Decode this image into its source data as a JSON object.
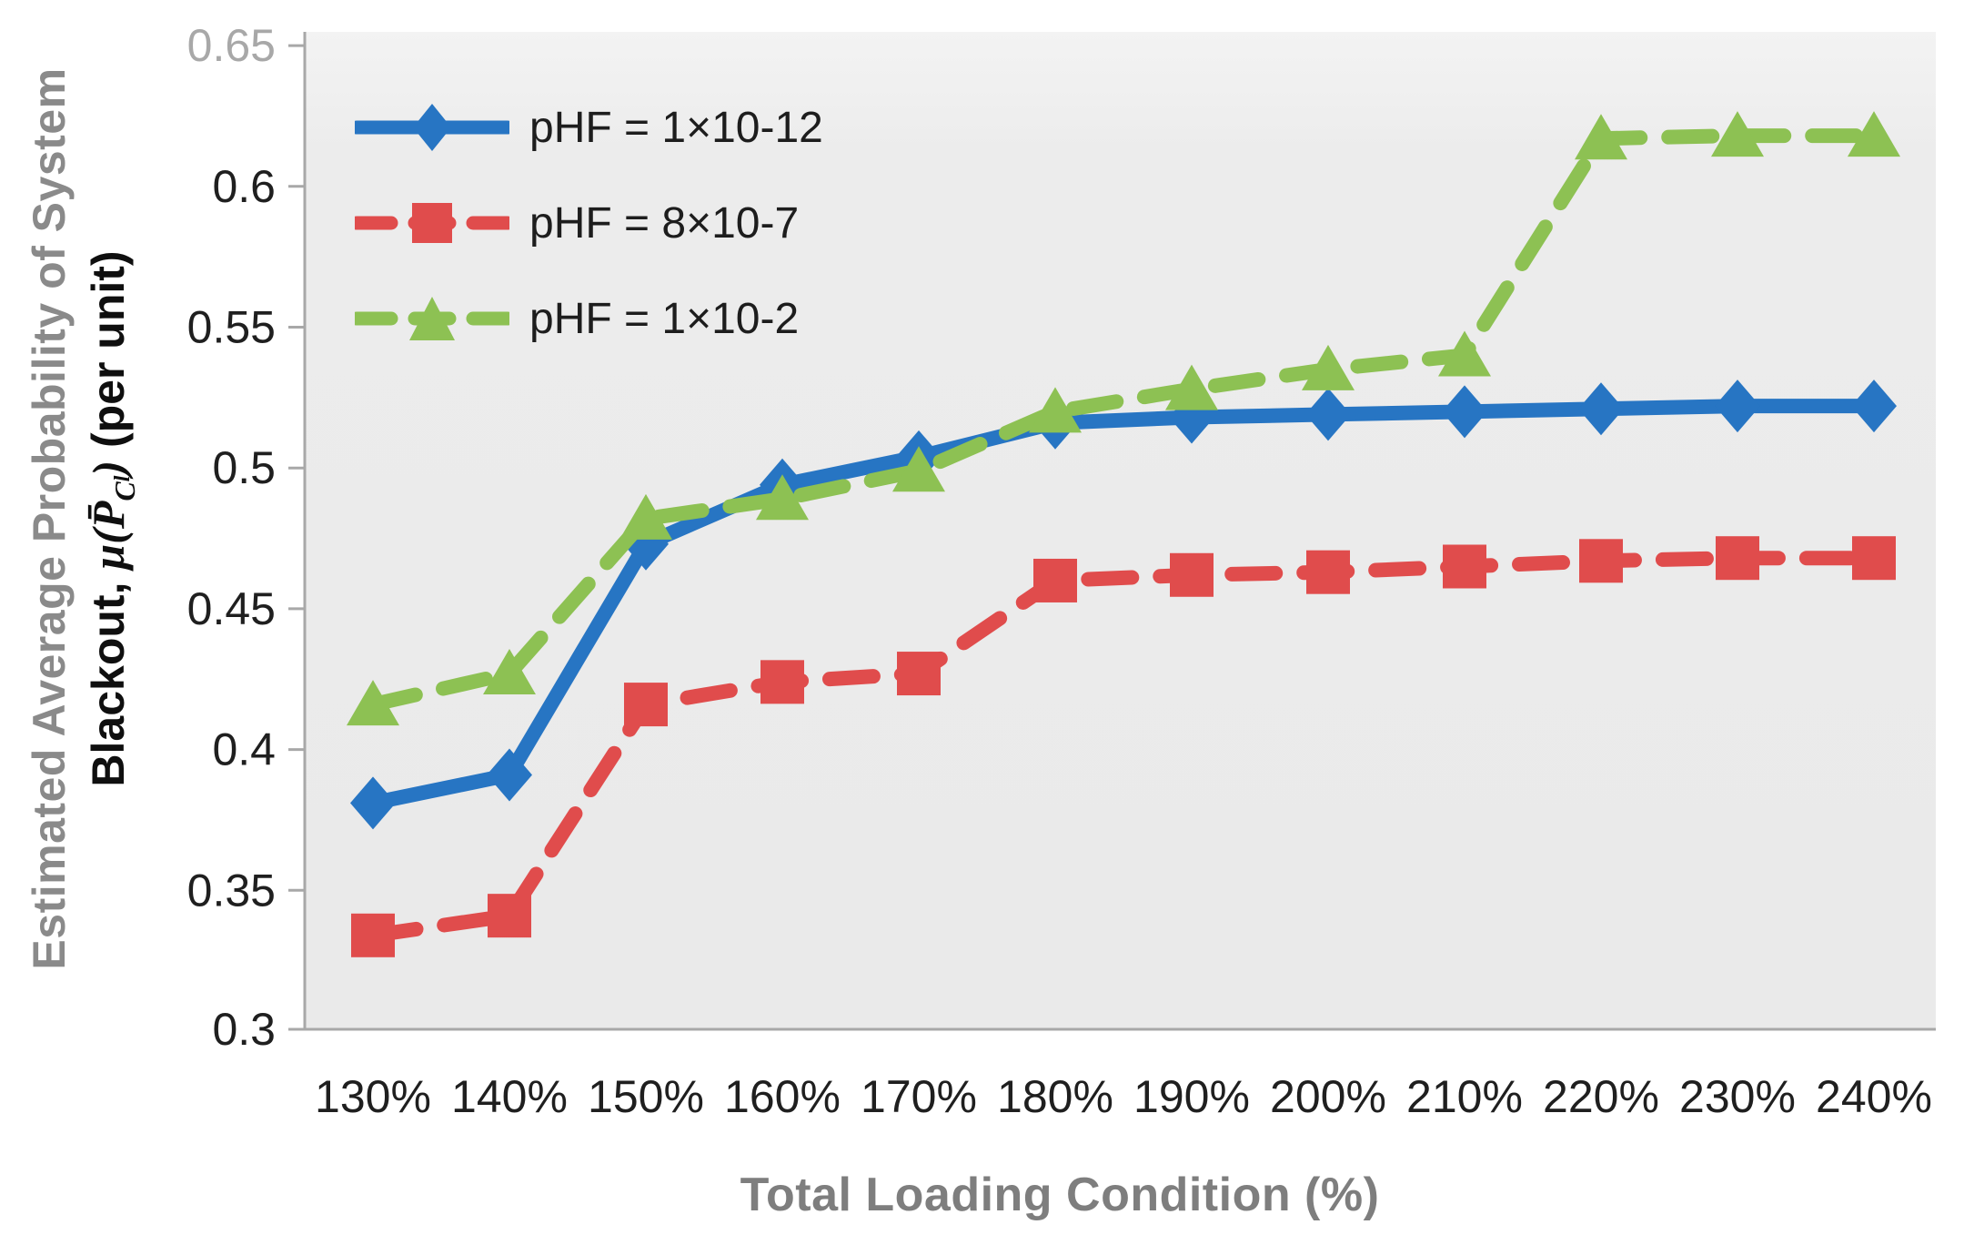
{
  "chart_data": {
    "type": "line",
    "xlabel": "Total Loading Condition (%)",
    "ylabel": {
      "line1": "Estimated Average Probability of System",
      "line2_prefix": "Blackout, ",
      "math_mu": "μ(",
      "math_p": "P̄",
      "math_sub_c": "C",
      "math_sub_l": "l",
      "math_close": ")",
      "line2_suffix": " (per unit)"
    },
    "categories": [
      "130%",
      "140%",
      "150%",
      "160%",
      "170%",
      "180%",
      "190%",
      "200%",
      "210%",
      "220%",
      "230%",
      "240%"
    ],
    "y_ticks": [
      {
        "label": "0.65",
        "value": 0.65
      },
      {
        "label": "0.6",
        "value": 0.6
      },
      {
        "label": "0.55",
        "value": 0.55
      },
      {
        "label": "0.5",
        "value": 0.5
      },
      {
        "label": "0.45",
        "value": 0.45
      },
      {
        "label": "0.4",
        "value": 0.4
      },
      {
        "label": "0.35",
        "value": 0.35
      },
      {
        "label": "0.3",
        "value": 0.3
      }
    ],
    "muted_y_tick": "0.65",
    "ylim": [
      0.3,
      0.65
    ],
    "grid": false,
    "legend_position": "top-left",
    "panel_bg": "#ececec",
    "axis_color": "#a8a8a8",
    "series": [
      {
        "name": "pHF = 1×10-12",
        "color": "#2775c3",
        "dash": "solid",
        "marker": "diamond",
        "values": [
          0.381,
          0.391,
          0.473,
          0.494,
          0.504,
          0.516,
          0.518,
          0.519,
          0.52,
          0.521,
          0.522,
          0.522
        ]
      },
      {
        "name": "pHF = 8×10-7",
        "color": "#e04c4c",
        "dash": "dashed",
        "marker": "square",
        "values": [
          0.334,
          0.341,
          0.416,
          0.424,
          0.427,
          0.46,
          0.462,
          0.463,
          0.465,
          0.467,
          0.468,
          0.468
        ]
      },
      {
        "name": "pHF = 1×10-2",
        "color": "#8dc153",
        "dash": "dashed",
        "marker": "triangle",
        "values": [
          0.416,
          0.427,
          0.482,
          0.489,
          0.499,
          0.52,
          0.528,
          0.535,
          0.54,
          0.617,
          0.618,
          0.618
        ]
      }
    ]
  }
}
